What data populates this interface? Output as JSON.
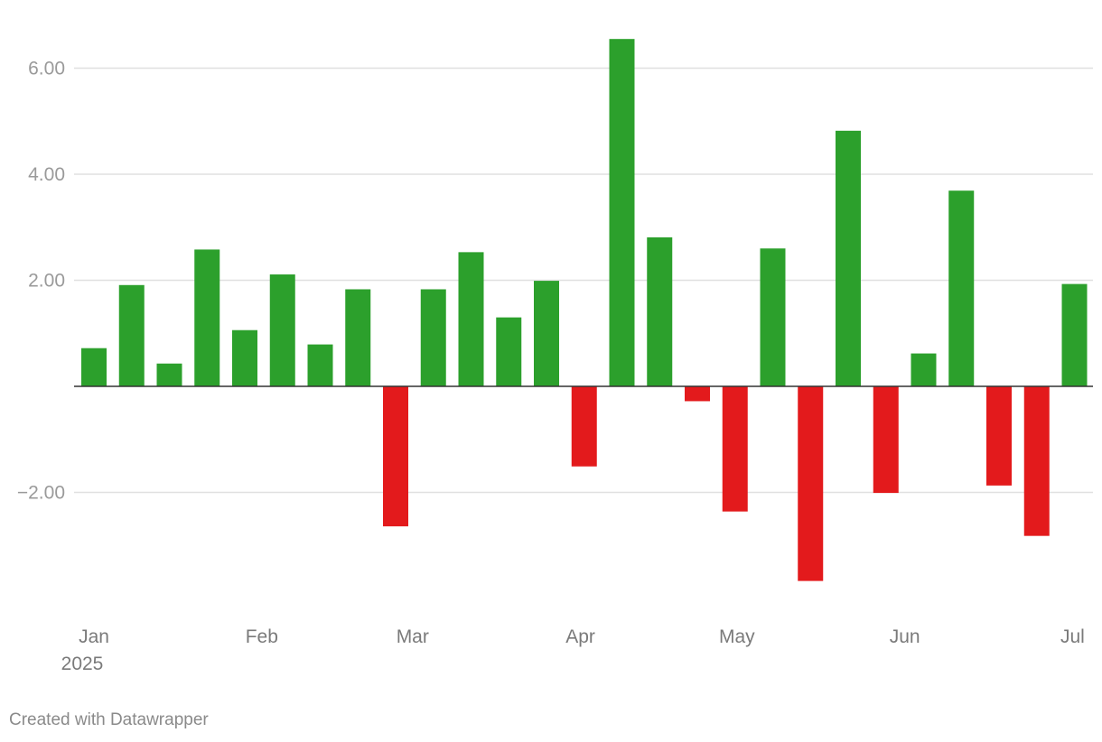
{
  "chart_data": {
    "type": "bar",
    "title": "",
    "xlabel": "",
    "ylabel": "",
    "ylim": [
      -4.2,
      7.0
    ],
    "y_ticks": [
      {
        "value": 6,
        "label": "6.00"
      },
      {
        "value": 4,
        "label": "4.00"
      },
      {
        "value": 2,
        "label": "2.00"
      },
      {
        "value": -2,
        "label": "−2.00"
      }
    ],
    "x_ticks": [
      {
        "label": "Jan",
        "sublabel": "2025",
        "position": 0.0
      },
      {
        "label": "Feb",
        "position": 4.45
      },
      {
        "label": "Mar",
        "position": 8.45
      },
      {
        "label": "Apr",
        "position": 12.9
      },
      {
        "label": "May",
        "position": 17.05
      },
      {
        "label": "Jun",
        "position": 21.5
      },
      {
        "label": "Jul",
        "position": 25.95
      }
    ],
    "values": [
      0.72,
      1.91,
      0.43,
      2.58,
      1.06,
      2.11,
      0.79,
      1.83,
      -2.64,
      1.83,
      2.53,
      1.3,
      1.99,
      -1.51,
      6.55,
      2.81,
      -0.28,
      -2.36,
      2.6,
      -3.67,
      4.82,
      -2.01,
      0.62,
      3.69,
      -1.87,
      -2.82,
      1.93
    ],
    "colors": {
      "positive": "#2ca02c",
      "negative": "#e31a1c",
      "grid": "#e0e0e0",
      "baseline": "#333333"
    }
  },
  "footer": {
    "credit": "Created with Datawrapper"
  }
}
